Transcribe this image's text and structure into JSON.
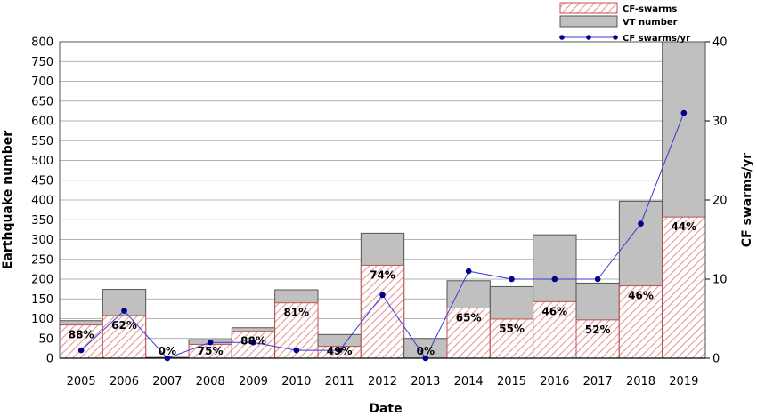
{
  "chart_data": {
    "type": "bar",
    "xlabel": "Date",
    "ylabel": "Earthquake number",
    "y2label": "CF swarms/yr",
    "ylim": [
      0,
      800
    ],
    "y2lim": [
      0,
      40
    ],
    "yticks": [
      0,
      50,
      100,
      150,
      200,
      250,
      300,
      350,
      400,
      450,
      500,
      550,
      600,
      650,
      700,
      750,
      800
    ],
    "y2ticks": [
      0,
      10,
      20,
      30,
      40
    ],
    "grid": true,
    "legend_position": "top-right",
    "categories": [
      "2005",
      "2006",
      "2007",
      "2008",
      "2009",
      "2010",
      "2011",
      "2012",
      "2013",
      "2014",
      "2015",
      "2016",
      "2017",
      "2018",
      "2019"
    ],
    "series": [
      {
        "name": "CF-swarms",
        "kind": "bar",
        "axis": "left",
        "color": "#c0504d",
        "values": [
          84,
          108,
          0,
          35,
          68,
          140,
          30,
          235,
          0,
          127,
          99,
          143,
          97,
          183,
          357
        ]
      },
      {
        "name": "VT number",
        "kind": "bar",
        "axis": "left",
        "color": "#c0c0c0",
        "values": [
          95,
          174,
          2,
          47,
          77,
          173,
          60,
          316,
          50,
          196,
          181,
          312,
          190,
          397,
          800
        ]
      },
      {
        "name": "CF swarms/yr",
        "kind": "line",
        "axis": "right",
        "color": "#00008b",
        "values": [
          1,
          6,
          0,
          2,
          2,
          1,
          1,
          8,
          0,
          11,
          10,
          10,
          10,
          17,
          31
        ]
      }
    ],
    "bar_labels": [
      "88%",
      "62%",
      "0%",
      "75%",
      "88%",
      "81%",
      "49%",
      "74%",
      "0%",
      "65%",
      "55%",
      "46%",
      "52%",
      "46%",
      "44%"
    ]
  }
}
